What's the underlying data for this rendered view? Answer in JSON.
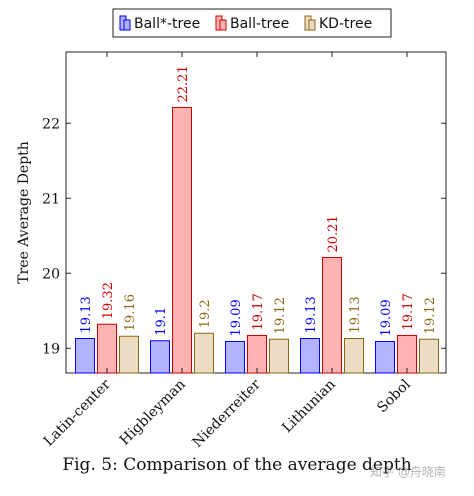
{
  "chart_data": {
    "type": "bar",
    "categories": [
      "Latin-center",
      "Higbleyman",
      "Niederreiter",
      "Lithunian",
      "Sobol"
    ],
    "series": [
      {
        "name": "Ball*-tree",
        "values": [
          19.13,
          19.1,
          19.09,
          19.13,
          19.09
        ],
        "labels": [
          "19.13",
          "19.1",
          "19.09",
          "19.13",
          "19.09"
        ],
        "color": "#0000ff",
        "fill": "#b3b3ff"
      },
      {
        "name": "Ball-tree",
        "values": [
          19.32,
          22.21,
          19.17,
          20.21,
          19.17
        ],
        "labels": [
          "19.32",
          "22.21",
          "19.17",
          "20.21",
          "19.17"
        ],
        "color": "#cc0000",
        "fill": "#ffb3b3"
      },
      {
        "name": "KD-tree",
        "values": [
          19.16,
          19.2,
          19.12,
          19.13,
          19.12
        ],
        "labels": [
          "19.16",
          "19.2",
          "19.12",
          "19.13",
          "19.12"
        ],
        "color": "#8b6914",
        "fill": "#ecdcc4"
      }
    ],
    "ylabel": "Tree Average Depth",
    "xlabel": "",
    "yticks": [
      19,
      20,
      21,
      22
    ],
    "ylim": [
      18.67,
      22.95
    ],
    "grid": false,
    "legend": "top-center"
  },
  "caption": "Fig. 5: Comparison of the average depth",
  "watermark": "知乎 @舟晓南"
}
